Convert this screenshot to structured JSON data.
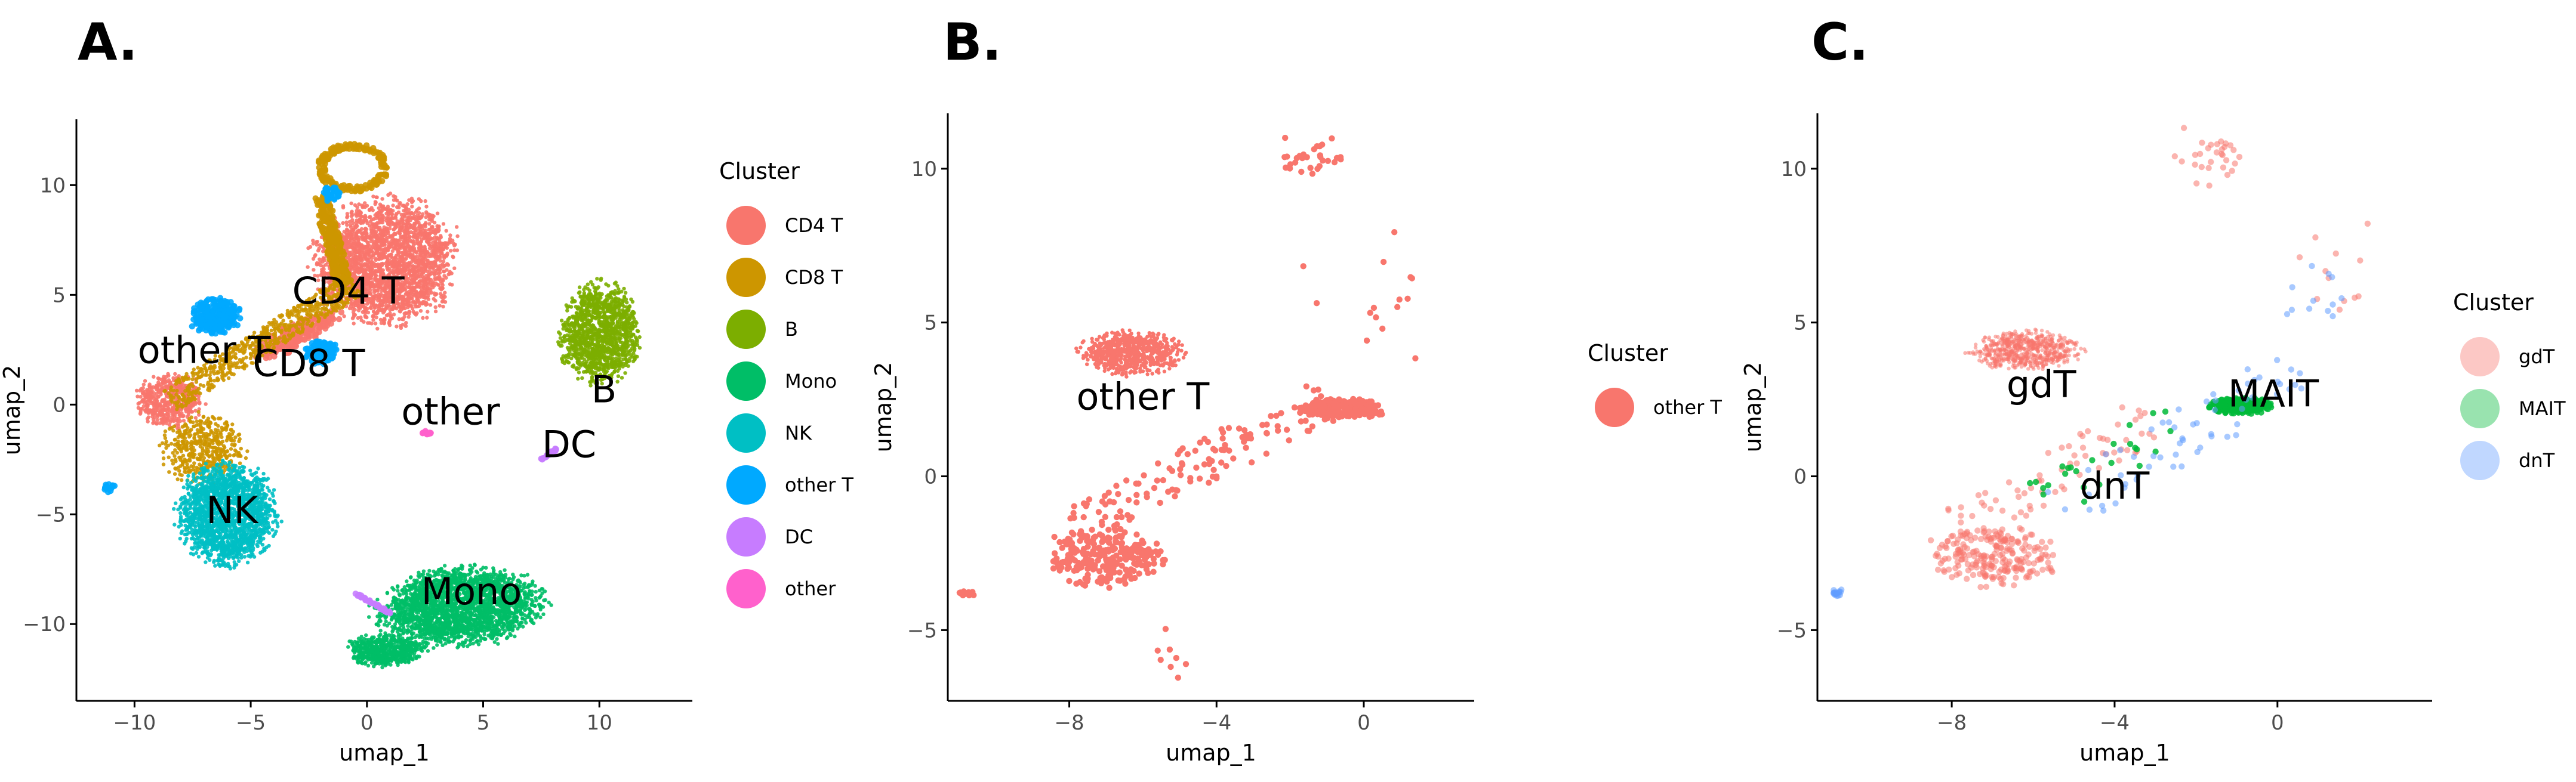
{
  "chart_data": [
    {
      "panel": "A.",
      "type": "scatter",
      "xlabel": "umap_1",
      "ylabel": "umap_2",
      "xlim": [
        -12.5,
        14
      ],
      "ylim": [
        -13.5,
        13
      ],
      "xticks": [
        -10,
        -5,
        0,
        5,
        10
      ],
      "yticks": [
        -10,
        -5,
        0,
        5,
        10
      ],
      "legend_title": "Cluster",
      "legend_position": "right",
      "legend_alpha": 1,
      "series": [
        {
          "name": "CD4 T",
          "color": "#F8766D",
          "alpha": 0.9
        },
        {
          "name": "CD8 T",
          "color": "#CD9600",
          "alpha": 0.9
        },
        {
          "name": "B",
          "color": "#7CAE00",
          "alpha": 0.9
        },
        {
          "name": "Mono",
          "color": "#00BE67",
          "alpha": 0.9
        },
        {
          "name": "NK",
          "color": "#00BFC4",
          "alpha": 0.9
        },
        {
          "name": "other T",
          "color": "#00A9FF",
          "alpha": 0.9
        },
        {
          "name": "DC",
          "color": "#C77CFF",
          "alpha": 0.9
        },
        {
          "name": "other",
          "color": "#FF61CC",
          "alpha": 0.9
        }
      ],
      "clusters": [
        {
          "series": "CD4 T",
          "n": 2600,
          "shape": "ellipse",
          "cx": 0.8,
          "cy": 6.5,
          "rx": 3.5,
          "ry": 3.2,
          "rot": 15
        },
        {
          "series": "CD4 T",
          "n": 500,
          "shape": "ellipse",
          "cx": -8.5,
          "cy": 0.2,
          "rx": 1.6,
          "ry": 1.4,
          "rot": 0
        },
        {
          "series": "CD4 T",
          "n": 200,
          "shape": "ellipse",
          "cx": -3.0,
          "cy": 3.2,
          "rx": 2.5,
          "ry": 0.6,
          "rot": 30
        },
        {
          "series": "CD8 T",
          "n": 650,
          "shape": "band",
          "x1": -8.5,
          "y1": 0.2,
          "x2": -0.5,
          "y2": 5.5,
          "w": 1.2
        },
        {
          "series": "CD8 T",
          "n": 450,
          "shape": "ellipse",
          "cx": -7.0,
          "cy": -2.0,
          "rx": 2.0,
          "ry": 1.8,
          "rot": 0
        },
        {
          "series": "CD8 T",
          "n": 260,
          "shape": "band",
          "x1": -1.0,
          "y1": 5.5,
          "x2": -2.0,
          "y2": 9.5,
          "w": 0.7
        },
        {
          "series": "CD8 T",
          "n": 170,
          "shape": "ring",
          "cx": -0.6,
          "cy": 10.8,
          "rx": 1.4,
          "ry": 1.0,
          "rot": 0
        },
        {
          "series": "B",
          "n": 1300,
          "shape": "ellipse",
          "cx": 10.0,
          "cy": 3.2,
          "rx": 1.9,
          "ry": 2.6,
          "rot": 0
        },
        {
          "series": "Mono",
          "n": 2400,
          "shape": "ellipse",
          "cx": 4.0,
          "cy": -9.2,
          "rx": 4.0,
          "ry": 2.0,
          "rot": 5
        },
        {
          "series": "Mono",
          "n": 600,
          "shape": "ellipse",
          "cx": 0.8,
          "cy": -11.2,
          "rx": 1.9,
          "ry": 0.8,
          "rot": 0
        },
        {
          "series": "NK",
          "n": 1800,
          "shape": "ellipse",
          "cx": -6.0,
          "cy": -5.0,
          "rx": 2.4,
          "ry": 2.6,
          "rot": 0
        },
        {
          "series": "other T",
          "n": 260,
          "shape": "ellipse",
          "cx": -6.5,
          "cy": 4.0,
          "rx": 1.2,
          "ry": 0.9,
          "rot": 0
        },
        {
          "series": "other T",
          "n": 140,
          "shape": "ellipse",
          "cx": -2.0,
          "cy": 2.4,
          "rx": 0.8,
          "ry": 0.6,
          "rot": 0
        },
        {
          "series": "other T",
          "n": 40,
          "shape": "ellipse",
          "cx": -1.5,
          "cy": 9.6,
          "rx": 0.5,
          "ry": 0.4,
          "rot": 0
        },
        {
          "series": "other T",
          "n": 20,
          "shape": "ellipse",
          "cx": -11.1,
          "cy": -3.8,
          "rx": 0.3,
          "ry": 0.2,
          "rot": 0
        },
        {
          "series": "DC",
          "n": 40,
          "shape": "band",
          "x1": -0.5,
          "y1": -8.6,
          "x2": 1.0,
          "y2": -9.5,
          "w": 0.1
        },
        {
          "series": "DC",
          "n": 30,
          "shape": "band",
          "x1": 7.5,
          "y1": -2.5,
          "x2": 8.2,
          "y2": -2.0,
          "w": 0.1
        },
        {
          "series": "other",
          "n": 15,
          "shape": "ellipse",
          "cx": 2.6,
          "cy": -1.3,
          "rx": 0.3,
          "ry": 0.1,
          "rot": 0
        }
      ],
      "labels": [
        {
          "text": "CD4 T",
          "x": -0.8,
          "y": 5.2
        },
        {
          "text": "CD8 T",
          "x": -2.5,
          "y": 1.9
        },
        {
          "text": "other T",
          "x": -7.0,
          "y": 2.5
        },
        {
          "text": "other",
          "x": 3.6,
          "y": -0.3
        },
        {
          "text": "B",
          "x": 10.2,
          "y": 0.7
        },
        {
          "text": "DC",
          "x": 8.7,
          "y": -1.8
        },
        {
          "text": "NK",
          "x": -5.8,
          "y": -4.8
        },
        {
          "text": "Mono",
          "x": 4.5,
          "y": -8.5
        }
      ]
    },
    {
      "panel": "B.",
      "type": "scatter",
      "xlabel": "umap_1",
      "ylabel": "umap_2",
      "xlim": [
        -11.3,
        3.0
      ],
      "ylim": [
        -7.3,
        11.8
      ],
      "xticks": [
        -8,
        -4,
        0
      ],
      "yticks": [
        -5,
        0,
        5,
        10
      ],
      "legend_title": "Cluster",
      "legend_position": "right",
      "legend_alpha": 1,
      "series": [
        {
          "name": "other T",
          "color": "#F8766D",
          "alpha": 1
        }
      ],
      "clusters": [
        {
          "series": "other T",
          "n": 700,
          "shape": "ellipse",
          "cx": -6.3,
          "cy": 4.0,
          "rx": 1.6,
          "ry": 0.8,
          "rot": 0
        },
        {
          "series": "other T",
          "n": 260,
          "shape": "ellipse",
          "cx": -0.6,
          "cy": 2.2,
          "rx": 1.3,
          "ry": 0.35,
          "rot": 0
        },
        {
          "series": "other T",
          "n": 260,
          "shape": "ellipse",
          "cx": -7.0,
          "cy": -2.6,
          "rx": 1.8,
          "ry": 1.1,
          "rot": 0
        },
        {
          "series": "other T",
          "n": 130,
          "shape": "band",
          "x1": -8.0,
          "y1": -1.8,
          "x2": -1.0,
          "y2": 2.5,
          "w": 1.4
        },
        {
          "series": "other T",
          "n": 30,
          "shape": "scatter",
          "cx": -1.5,
          "cy": 10.3,
          "rx": 0.8,
          "ry": 0.6,
          "rot": 0
        },
        {
          "series": "other T",
          "n": 15,
          "shape": "scatter",
          "cx": 0.8,
          "cy": 5.5,
          "rx": 1.4,
          "ry": 1.6,
          "rot": 0
        },
        {
          "series": "other T",
          "n": 10,
          "shape": "ellipse",
          "cx": -10.8,
          "cy": -3.8,
          "rx": 0.25,
          "ry": 0.15,
          "rot": 0
        },
        {
          "series": "other T",
          "n": 8,
          "shape": "scatter",
          "cx": -5.3,
          "cy": -5.8,
          "rx": 0.4,
          "ry": 0.6,
          "rot": 0
        }
      ],
      "labels": [
        {
          "text": "other T",
          "x": -6.0,
          "y": 2.6
        }
      ]
    },
    {
      "panel": "C.",
      "type": "scatter",
      "xlabel": "umap_1",
      "ylabel": "umap_2",
      "xlim": [
        -11.3,
        3.8
      ],
      "ylim": [
        -7.3,
        11.8
      ],
      "xticks": [
        -8,
        -4,
        0
      ],
      "yticks": [
        -5,
        0,
        5,
        10
      ],
      "legend_title": "Cluster",
      "legend_position": "right",
      "legend_alpha": 0.4,
      "series": [
        {
          "name": "gdT",
          "color": "#F8766D",
          "alpha": 0.55
        },
        {
          "name": "MAIT",
          "color": "#00BA38",
          "alpha": 0.85
        },
        {
          "name": "dnT",
          "color": "#619CFF",
          "alpha": 0.55
        }
      ],
      "clusters": [
        {
          "series": "gdT",
          "n": 650,
          "shape": "ellipse",
          "cx": -6.2,
          "cy": 4.1,
          "rx": 1.5,
          "ry": 0.7,
          "rot": 0
        },
        {
          "series": "gdT",
          "n": 230,
          "shape": "ellipse",
          "cx": -7.0,
          "cy": -2.6,
          "rx": 1.8,
          "ry": 1.1,
          "rot": 0
        },
        {
          "series": "gdT",
          "n": 70,
          "shape": "band",
          "x1": -8.0,
          "y1": -1.8,
          "x2": -3.0,
          "y2": 2.0,
          "w": 1.4
        },
        {
          "series": "gdT",
          "n": 30,
          "shape": "scatter",
          "cx": -1.5,
          "cy": 10.3,
          "rx": 0.8,
          "ry": 0.6,
          "rot": 0
        },
        {
          "series": "gdT",
          "n": 12,
          "shape": "scatter",
          "cx": 1.6,
          "cy": 6.5,
          "rx": 1.0,
          "ry": 1.4,
          "rot": 0
        },
        {
          "series": "MAIT",
          "n": 300,
          "shape": "ellipse",
          "cx": -0.9,
          "cy": 2.3,
          "rx": 0.9,
          "ry": 0.3,
          "rot": 0
        },
        {
          "series": "MAIT",
          "n": 25,
          "shape": "band",
          "x1": -6.0,
          "y1": -1.0,
          "x2": -2.0,
          "y2": 2.2,
          "w": 1.4
        },
        {
          "series": "dnT",
          "n": 60,
          "shape": "band",
          "x1": -5.5,
          "y1": -1.2,
          "x2": 0.5,
          "y2": 3.5,
          "w": 1.6
        },
        {
          "series": "dnT",
          "n": 18,
          "shape": "ellipse",
          "cx": -10.8,
          "cy": -3.8,
          "rx": 0.2,
          "ry": 0.15,
          "rot": 0
        },
        {
          "series": "dnT",
          "n": 12,
          "shape": "scatter",
          "cx": 1.0,
          "cy": 6.0,
          "rx": 1.0,
          "ry": 1.2,
          "rot": 0
        }
      ],
      "labels": [
        {
          "text": "gdT",
          "x": -5.8,
          "y": 3.0
        },
        {
          "text": "MAIT",
          "x": -0.1,
          "y": 2.7
        },
        {
          "text": "dnT",
          "x": -4.0,
          "y": -0.3
        }
      ]
    }
  ]
}
